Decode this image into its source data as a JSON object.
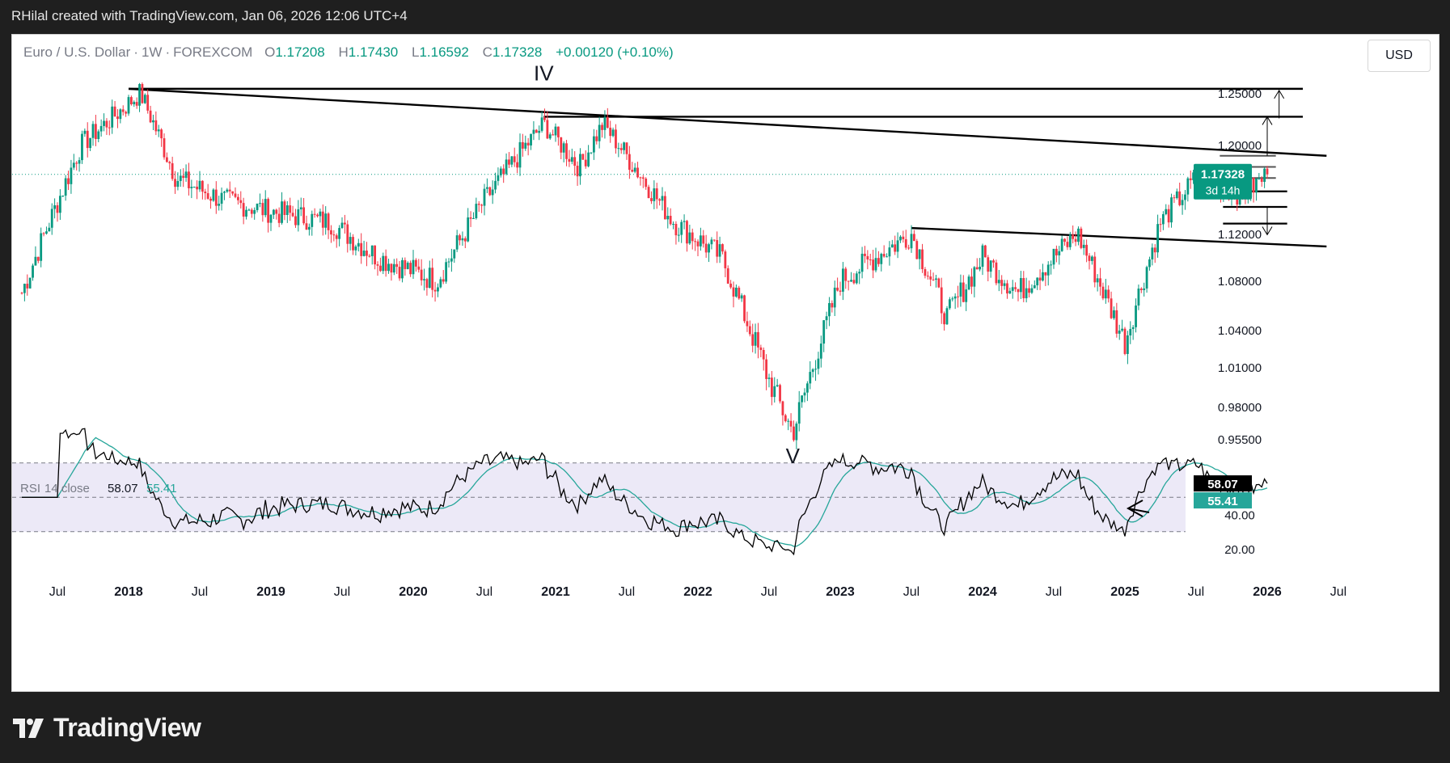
{
  "header": {
    "title": "RHilal created with TradingView.com, Jan 06, 2026 12:06 UTC+4"
  },
  "legend": {
    "symbol": "Euro / U.S. Dollar",
    "interval": "1W",
    "exchange": "FOREXCOM",
    "open_label": "O",
    "open": "1.17208",
    "high_label": "H",
    "high": "1.17430",
    "low_label": "L",
    "low": "1.16592",
    "close_label": "C",
    "close": "1.17328",
    "change": "+0.00120 (+0.10%)"
  },
  "currency_button": "USD",
  "brand": "TradingView",
  "colors": {
    "up": "#089981",
    "down": "#f23645",
    "rsi_line": "#000000",
    "rsi_ma": "#26a69a",
    "rsi_band": "#ece9f7"
  },
  "chart_data": [
    {
      "type": "candlestick",
      "symbol": "EURUSD",
      "interval": "1W",
      "y_ticks": [
        "1.25000",
        "1.20000",
        "1.12000",
        "1.08000",
        "1.04000",
        "1.01000",
        "0.98000",
        "0.95500"
      ],
      "ylim": [
        0.93,
        1.27
      ],
      "x_ticks": [
        "Jul",
        "2018",
        "Jul",
        "2019",
        "Jul",
        "2020",
        "Jul",
        "2021",
        "Jul",
        "2022",
        "Jul",
        "2023",
        "Jul",
        "2024",
        "Jul",
        "2025",
        "Jul",
        "2026",
        "Jul"
      ],
      "last_price": "1.17328",
      "countdown": "3d 14h",
      "wave_labels": [
        "IV",
        "V"
      ],
      "approx_path": [
        {
          "t": "2017-04",
          "v": 1.07
        },
        {
          "t": "2017-09",
          "v": 1.2
        },
        {
          "t": "2018-02",
          "v": 1.25
        },
        {
          "t": "2018-05",
          "v": 1.17
        },
        {
          "t": "2018-09",
          "v": 1.15
        },
        {
          "t": "2019-01",
          "v": 1.14
        },
        {
          "t": "2019-06",
          "v": 1.13
        },
        {
          "t": "2019-10",
          "v": 1.1
        },
        {
          "t": "2020-03",
          "v": 1.08
        },
        {
          "t": "2020-07",
          "v": 1.15
        },
        {
          "t": "2020-12",
          "v": 1.22
        },
        {
          "t": "2021-03",
          "v": 1.18
        },
        {
          "t": "2021-05",
          "v": 1.22
        },
        {
          "t": "2021-11",
          "v": 1.13
        },
        {
          "t": "2022-03",
          "v": 1.1
        },
        {
          "t": "2022-07",
          "v": 1.0
        },
        {
          "t": "2022-09",
          "v": 0.96
        },
        {
          "t": "2023-01",
          "v": 1.08
        },
        {
          "t": "2023-07",
          "v": 1.12
        },
        {
          "t": "2023-10",
          "v": 1.05
        },
        {
          "t": "2024-01",
          "v": 1.1
        },
        {
          "t": "2024-04",
          "v": 1.07
        },
        {
          "t": "2024-09",
          "v": 1.12
        },
        {
          "t": "2025-01",
          "v": 1.03
        },
        {
          "t": "2025-04",
          "v": 1.13
        },
        {
          "t": "2025-07",
          "v": 1.17
        },
        {
          "t": "2025-11",
          "v": 1.155
        },
        {
          "t": "2026-01",
          "v": 1.173
        }
      ]
    },
    {
      "type": "line",
      "title": "RSI 14 close",
      "label_text": "RSI",
      "label_params": "14 close",
      "series": [
        {
          "name": "RSI",
          "last": "58.07"
        },
        {
          "name": "RSI-based MA",
          "last": "55.41"
        }
      ],
      "y_ticks": [
        "40.00",
        "20.00"
      ],
      "bands": [
        70,
        50,
        30
      ],
      "ylim": [
        15,
        85
      ]
    }
  ]
}
